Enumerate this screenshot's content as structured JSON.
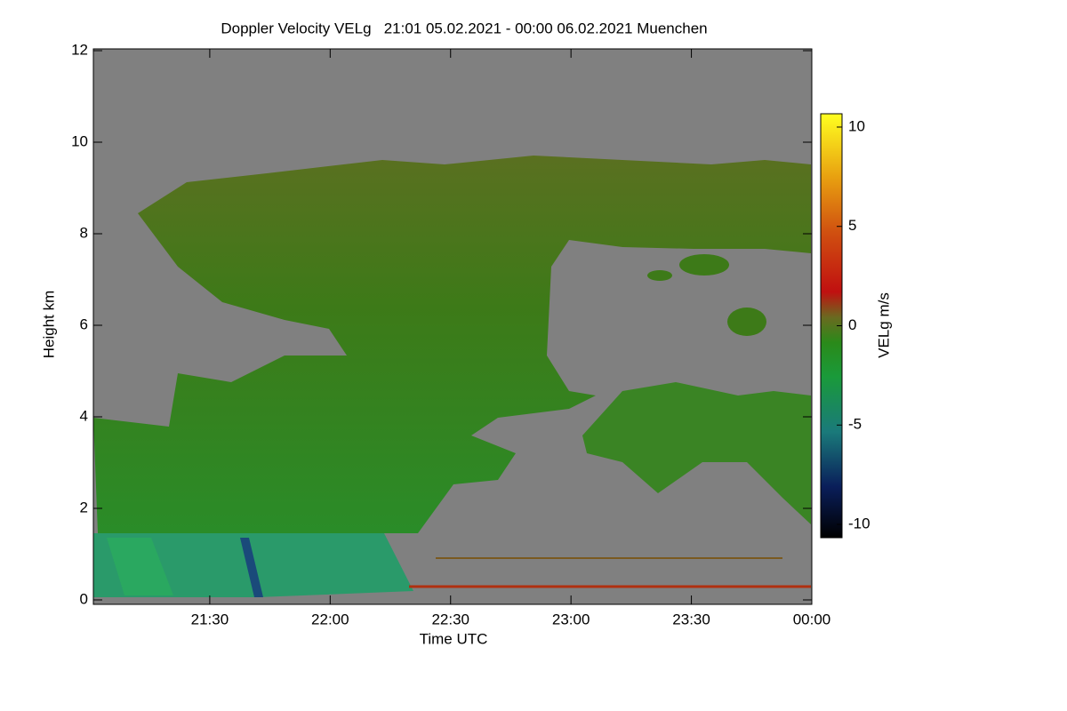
{
  "chart_data": {
    "type": "heatmap",
    "title": "Doppler Velocity VELg   21:01 05.02.2021 - 00:00 06.02.2021 Muenchen",
    "x_label": "Time UTC",
    "y_label": "Height km",
    "xlim": [
      1261,
      1440
    ],
    "xticks": [
      {
        "value": 1290,
        "label": "21:30"
      },
      {
        "value": 1320,
        "label": "22:00"
      },
      {
        "value": 1350,
        "label": "22:30"
      },
      {
        "value": 1380,
        "label": "23:00"
      },
      {
        "value": 1410,
        "label": "23:30"
      },
      {
        "value": 1440,
        "label": "00:00"
      }
    ],
    "ylim": [
      0,
      12
    ],
    "yticks": [
      0,
      2,
      4,
      6,
      8,
      10,
      12
    ],
    "colorbar": {
      "label": "VELg m/s",
      "clim": [
        -10.67,
        10.67
      ],
      "ticks": [
        -10,
        -5,
        0,
        5,
        10
      ]
    }
  }
}
